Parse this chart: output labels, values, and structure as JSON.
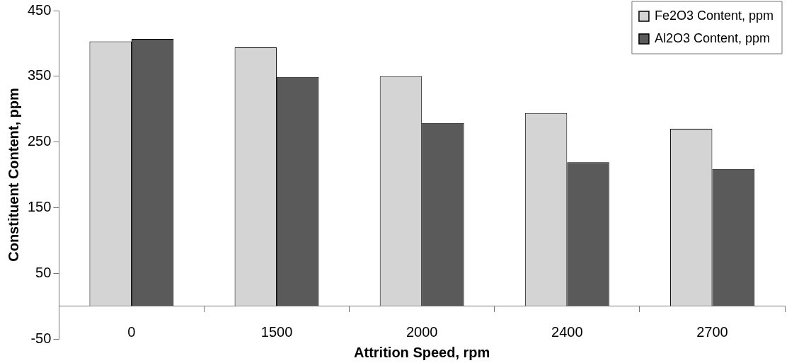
{
  "chart_data": {
    "type": "bar",
    "xlabel": "Attrition Speed, rpm",
    "ylabel": "Constituent Content, ppm",
    "categories": [
      "0",
      "1500",
      "2000",
      "2400",
      "2700"
    ],
    "series": [
      {
        "name": "Fe2O3 Content, ppm",
        "color": "#d4d4d4",
        "values": [
          403,
          394,
          350,
          294,
          270
        ]
      },
      {
        "name": "Al2O3 Content, ppm",
        "color": "#5a5a5a",
        "values": [
          407,
          349,
          279,
          219,
          209
        ]
      }
    ],
    "ylim": [
      -50,
      450
    ],
    "yticks": [
      -50,
      50,
      150,
      250,
      350,
      450
    ],
    "grid": false,
    "legend": "top right"
  }
}
